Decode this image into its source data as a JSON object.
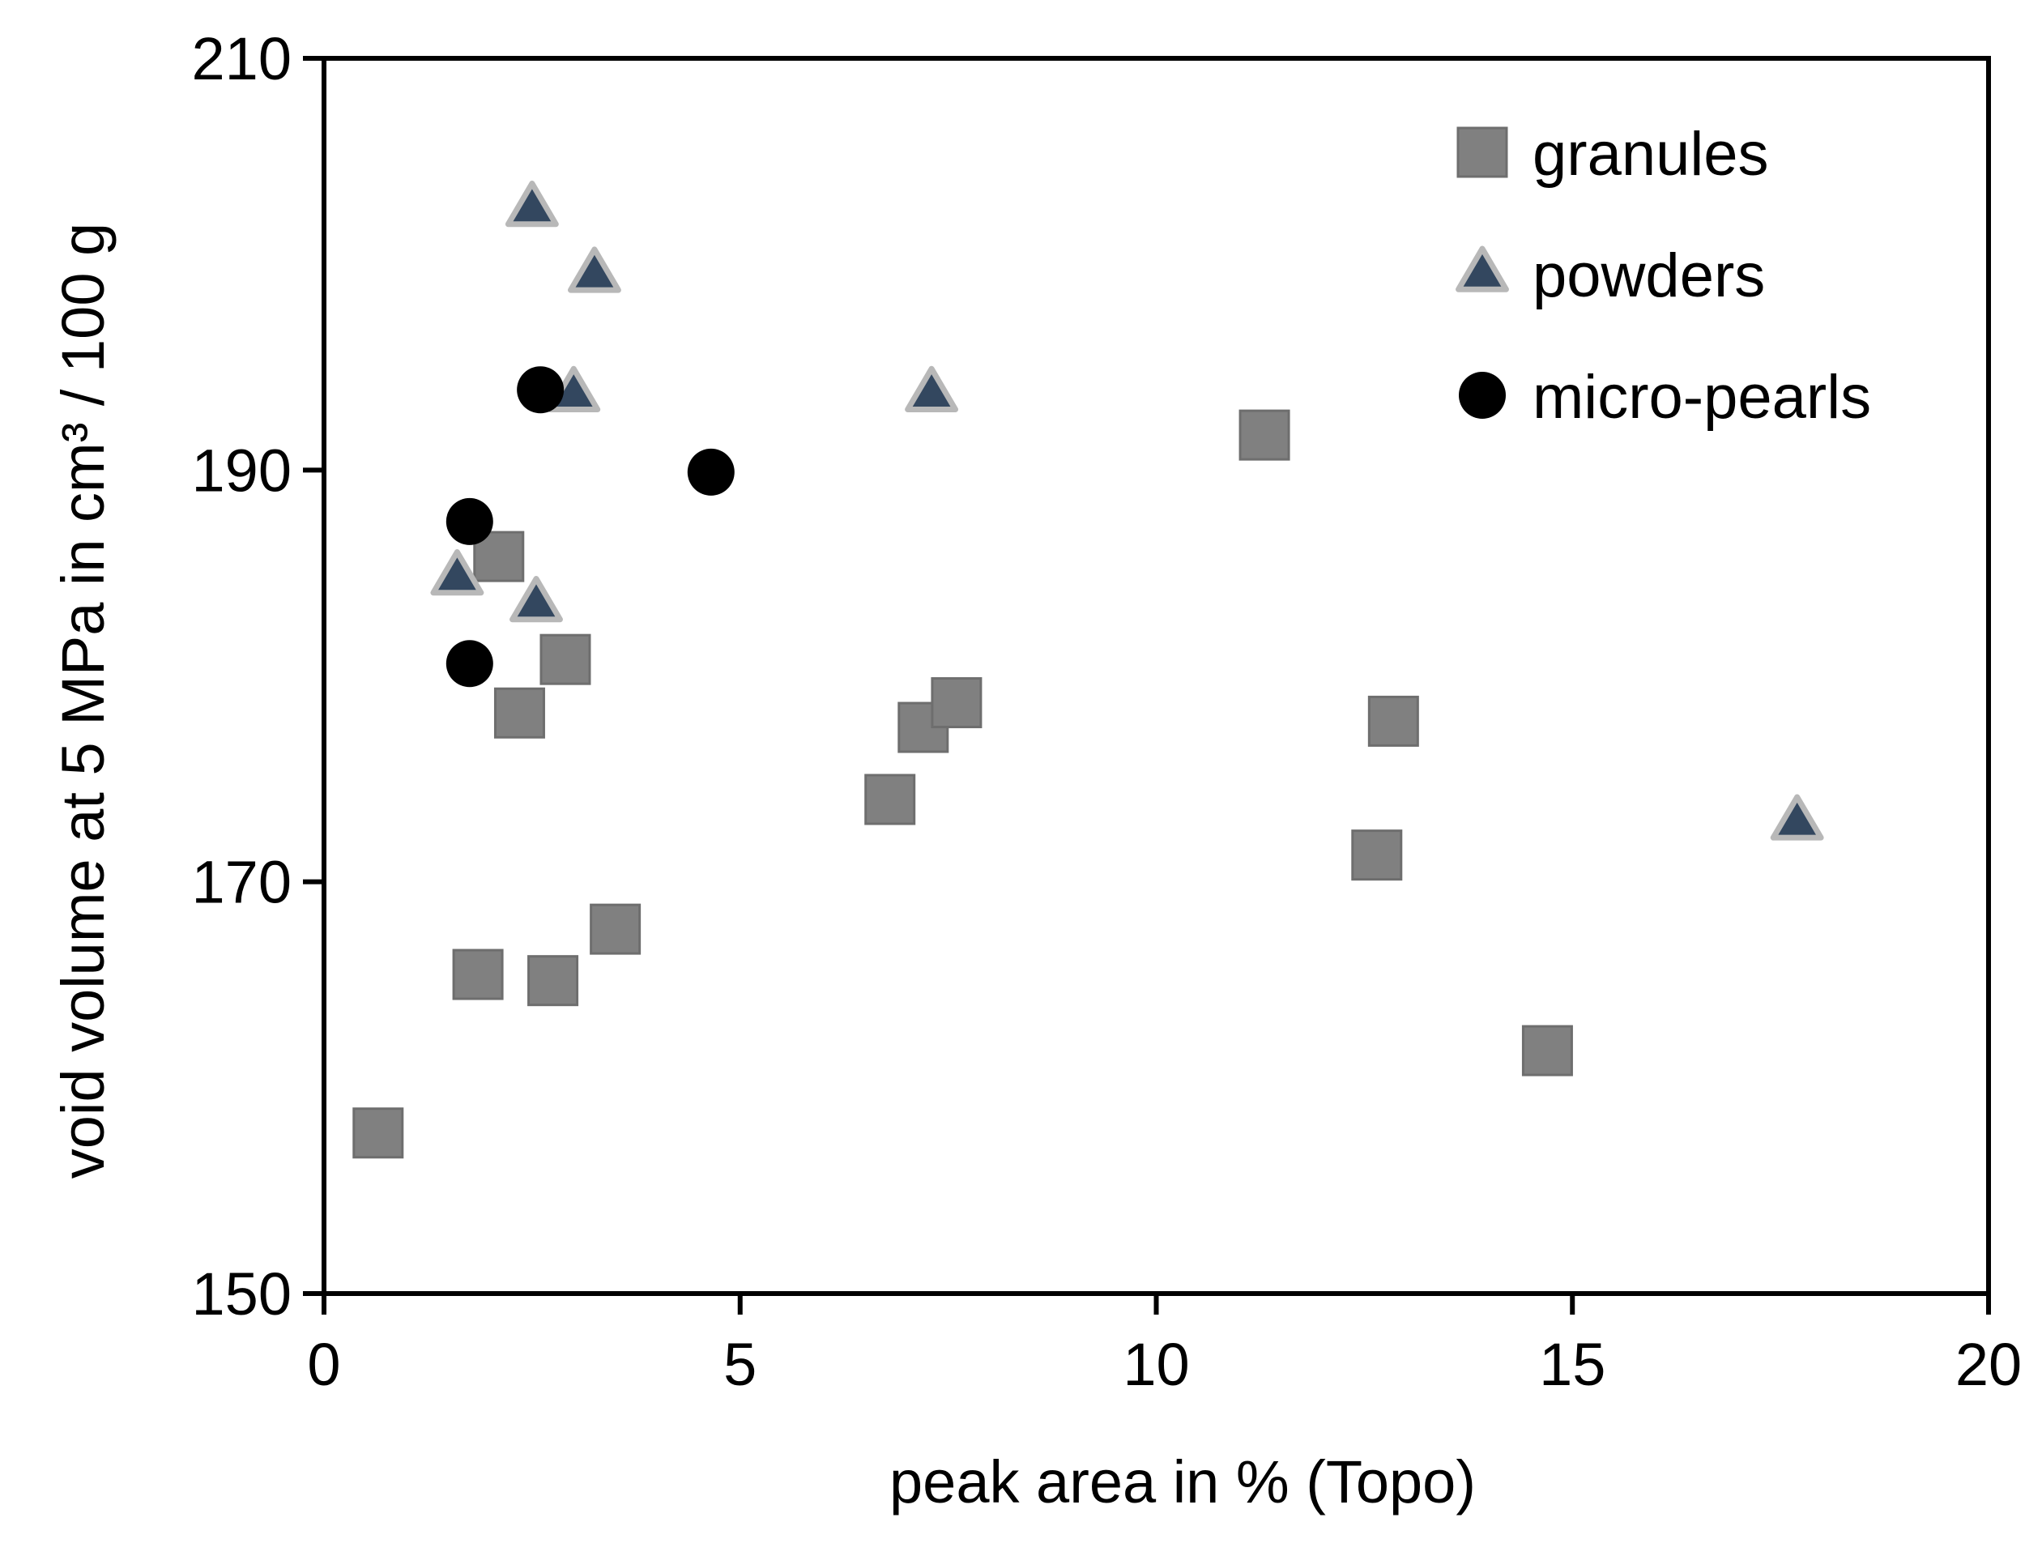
{
  "chart_data": {
    "type": "scatter",
    "title": "",
    "xlabel": "peak area in % (Topo)",
    "ylabel": "void volume at 5 MPa in cm³ / 100 g",
    "xlim": [
      0,
      20
    ],
    "ylim": [
      150,
      210
    ],
    "xticks": [
      0,
      5,
      10,
      15,
      20
    ],
    "yticks": [
      150,
      170,
      190,
      210
    ],
    "grid": false,
    "legend_position": "top-right",
    "series": [
      {
        "name": "granules",
        "marker": "square",
        "color": "#808080",
        "points": [
          {
            "x": 0.65,
            "y": 157.8
          },
          {
            "x": 1.85,
            "y": 165.5
          },
          {
            "x": 2.1,
            "y": 185.8
          },
          {
            "x": 2.35,
            "y": 178.2
          },
          {
            "x": 2.75,
            "y": 165.2
          },
          {
            "x": 2.9,
            "y": 180.8
          },
          {
            "x": 3.5,
            "y": 167.7
          },
          {
            "x": 6.8,
            "y": 174.0
          },
          {
            "x": 7.2,
            "y": 177.5
          },
          {
            "x": 7.6,
            "y": 178.7
          },
          {
            "x": 11.3,
            "y": 191.7
          },
          {
            "x": 12.65,
            "y": 171.3
          },
          {
            "x": 12.85,
            "y": 177.8
          },
          {
            "x": 14.7,
            "y": 161.8
          }
        ]
      },
      {
        "name": "powders",
        "marker": "triangle",
        "color": "#33475f",
        "edge_color": "#b8b8b8",
        "points": [
          {
            "x": 1.6,
            "y": 184.8
          },
          {
            "x": 2.5,
            "y": 202.7
          },
          {
            "x": 2.55,
            "y": 183.5
          },
          {
            "x": 3.0,
            "y": 193.7
          },
          {
            "x": 3.25,
            "y": 199.5
          },
          {
            "x": 7.3,
            "y": 193.7
          },
          {
            "x": 17.7,
            "y": 172.9
          }
        ]
      },
      {
        "name": "micro-pearls",
        "marker": "circle",
        "color": "#000000",
        "points": [
          {
            "x": 1.75,
            "y": 187.5
          },
          {
            "x": 1.75,
            "y": 180.6
          },
          {
            "x": 2.6,
            "y": 193.9
          },
          {
            "x": 4.65,
            "y": 189.9
          }
        ]
      }
    ]
  }
}
